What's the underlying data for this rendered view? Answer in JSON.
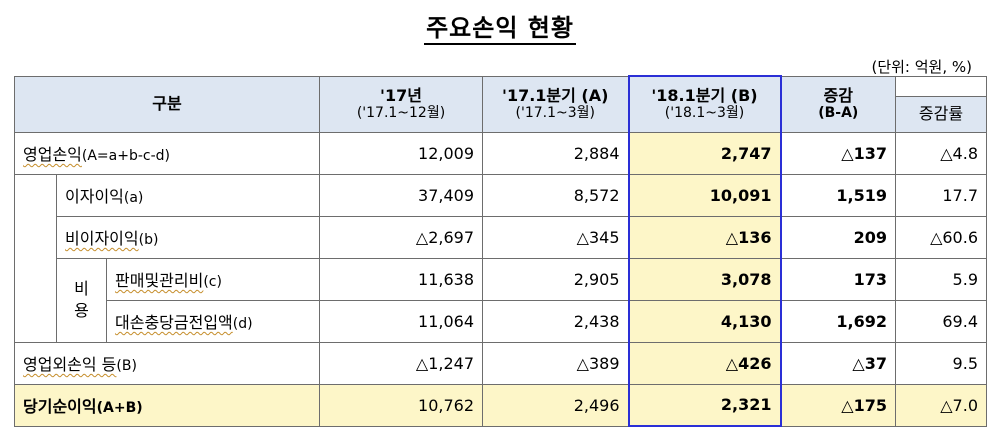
{
  "title": "주요손익 현황",
  "unit_note": "(단위: 억원, %)",
  "header": {
    "category": "구분",
    "col1": {
      "label": "'17년",
      "sub": "('17.1~12월)"
    },
    "col2": {
      "label": "'17.1분기 (A)",
      "sub": "('17.1~3월)"
    },
    "col3": {
      "label": "'18.1분기 (B)",
      "sub": "('18.1~3월)"
    },
    "col4": {
      "label": "증감",
      "sub": "(B-A)"
    },
    "col5": {
      "label": "증감률"
    }
  },
  "rows": [
    {
      "label": "영업손익",
      "label_small": "(A=a+b-c-d)",
      "v17": "12,009",
      "q17": "2,884",
      "q18": "2,747",
      "diff": "△137",
      "rate": "△4.8"
    },
    {
      "label": "이자이익",
      "label_small": "(a)",
      "v17": "37,409",
      "q17": "8,572",
      "q18": "10,091",
      "diff": "1,519",
      "rate": "17.7"
    },
    {
      "label": "비이자이익",
      "label_small": "(b)",
      "v17": "△2,697",
      "q17": "△345",
      "q18": "△136",
      "diff": "209",
      "rate": "△60.6"
    },
    {
      "label": "판매및관리비",
      "label_small": "(c)",
      "v17": "11,638",
      "q17": "2,905",
      "q18": "3,078",
      "diff": "173",
      "rate": "5.9"
    },
    {
      "label": "대손충당금전입액",
      "label_small": "(d)",
      "v17": "11,064",
      "q17": "2,438",
      "q18": "4,130",
      "diff": "1,692",
      "rate": "69.4"
    },
    {
      "label": "영업외손익 등",
      "label_small": "(B)",
      "v17": "△1,247",
      "q17": "△389",
      "q18": "△426",
      "diff": "△37",
      "rate": "9.5"
    },
    {
      "label": "당기순이익",
      "label_small": "(A+B)",
      "v17": "10,762",
      "q17": "2,496",
      "q18": "2,321",
      "diff": "△175",
      "rate": "△7.0"
    }
  ],
  "expense_group_label": "비용"
}
